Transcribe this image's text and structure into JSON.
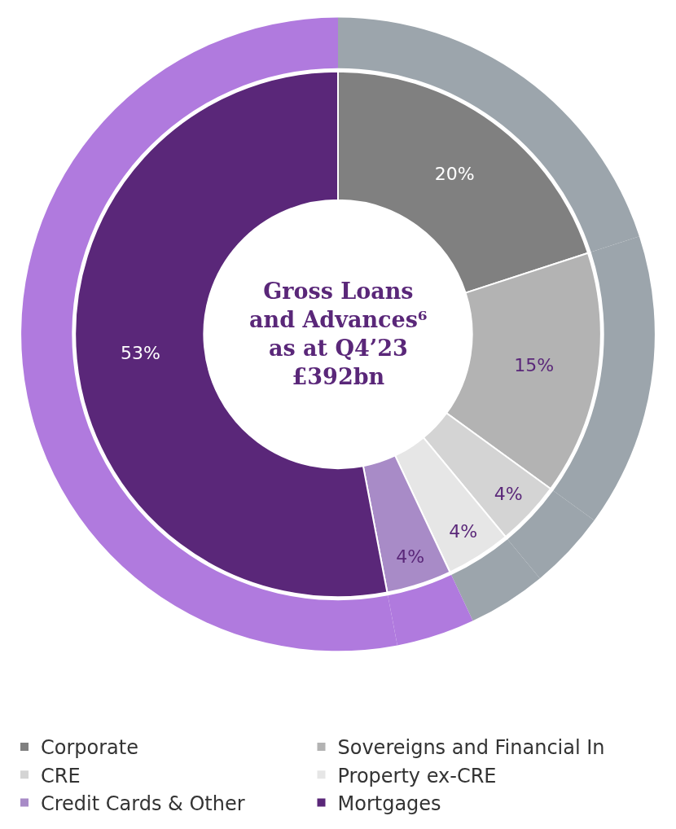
{
  "chart_data": {
    "type": "donut",
    "title": "Gross Loans\nand Advances⁶\nas at Q4’23\n£392bn",
    "legend": "bottom",
    "categories": [
      "Corporate",
      "Sovereigns and Financial In",
      "CRE",
      "Property ex-CRE",
      "Credit Cards & Other",
      "Mortgages"
    ],
    "series": [
      {
        "values": [
          20,
          15,
          4,
          4,
          4,
          53
        ],
        "value_labels": [
          "20%",
          "15%",
          "4%",
          "4%",
          "4%",
          "53%"
        ],
        "colors": [
          "#808080",
          "#b3b3b3",
          "#d4d4d4",
          "#e6e6e6",
          "#a88bc7",
          "#5a2779"
        ]
      },
      {
        "values": [
          20,
          15,
          4,
          4,
          4,
          53
        ],
        "colors": [
          "#9ca5ac",
          "#9ca5ac",
          "#9ca5ac",
          "#9ca5ac",
          "#b07ade",
          "#b07ade"
        ]
      }
    ]
  }
}
